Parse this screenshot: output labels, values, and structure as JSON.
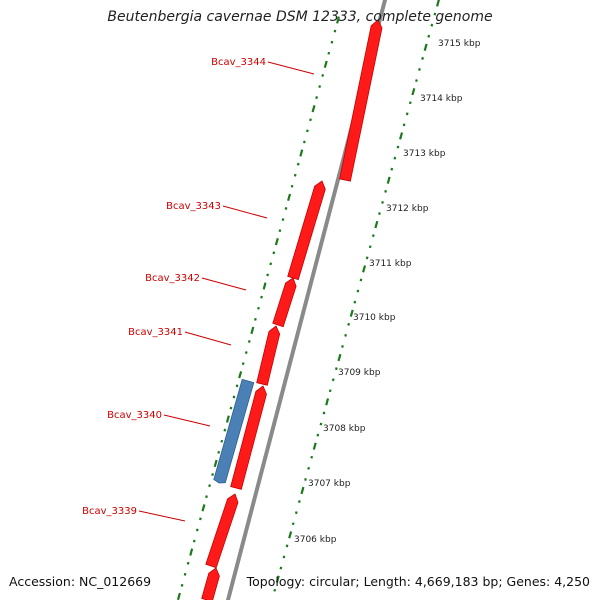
{
  "title": "Beutenbergia cavernae DSM 12333, complete genome",
  "footer": {
    "accession": "Accession: NC_012669",
    "summary": "Topology: circular; Length: 4,669,183 bp; Genes: 4,250"
  },
  "colors": {
    "forward_gene": "#ff1a1a",
    "reverse_gene": "#4a80b5",
    "backbone": "#888888",
    "ticks": "#1a7a1a",
    "gene_label": "#cc0000"
  },
  "scale_unit": "kbp",
  "scale_ticks": [
    "3715 kbp",
    "3714 kbp",
    "3713 kbp",
    "3712 kbp",
    "3711 kbp",
    "3710 kbp",
    "3709 kbp",
    "3708 kbp",
    "3707 kbp",
    "3706 kbp"
  ],
  "genes": [
    {
      "name": "Bcav_3344",
      "strand": "forward"
    },
    {
      "name": "Bcav_3343",
      "strand": "forward"
    },
    {
      "name": "Bcav_3342",
      "strand": "forward"
    },
    {
      "name": "Bcav_3341",
      "strand": "forward"
    },
    {
      "name": "Bcav_3340",
      "strand": "reverse"
    },
    {
      "name": "Bcav_3339",
      "strand": "forward"
    }
  ]
}
